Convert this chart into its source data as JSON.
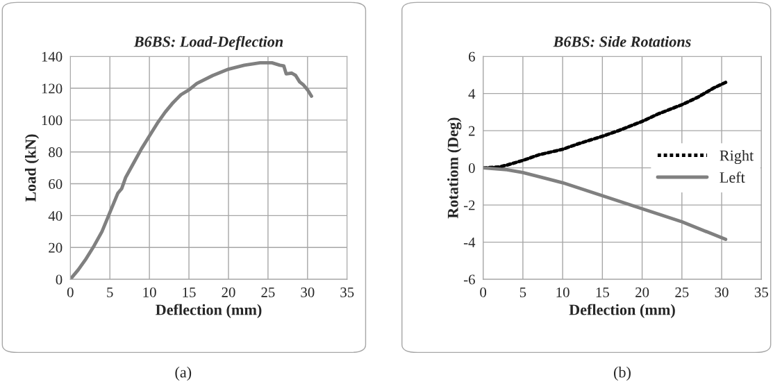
{
  "chart_data": [
    {
      "type": "line",
      "title": "B6BS: Load-Deflection",
      "xlabel": "Deflection (mm)",
      "ylabel": "Load (kN)",
      "xlim": [
        0,
        35
      ],
      "xticks": [
        0,
        5,
        10,
        15,
        20,
        25,
        30,
        35
      ],
      "ylim": [
        0,
        140
      ],
      "yticks": [
        0,
        20,
        40,
        60,
        80,
        100,
        120,
        140
      ],
      "grid": true,
      "legend": false,
      "annotations": [
        "(a)"
      ],
      "series": [
        {
          "color": "#808080",
          "line_style": "solid",
          "x": [
            0,
            1,
            2,
            3,
            4,
            5,
            6,
            6.5,
            7,
            8,
            9,
            10,
            11,
            12,
            13,
            14,
            15,
            16,
            18,
            20,
            22,
            24,
            25.5,
            26.5,
            27,
            27.3,
            28,
            28.5,
            29,
            29.5,
            30,
            30.5
          ],
          "values": [
            0,
            6,
            13,
            21,
            30,
            42,
            54,
            57,
            64,
            73,
            82,
            90,
            98,
            105,
            111,
            116,
            119,
            123,
            128,
            132,
            134.5,
            136,
            136,
            134.5,
            134,
            129,
            129.5,
            128,
            124,
            122,
            119,
            115
          ]
        }
      ]
    },
    {
      "type": "line",
      "title": "B6BS: Side Rotations",
      "xlabel": "Deflection (mm)",
      "ylabel": "Rotatiom (Deg)",
      "xlim": [
        0,
        35
      ],
      "xticks": [
        0,
        5,
        10,
        15,
        20,
        25,
        30,
        35
      ],
      "ylim": [
        -6,
        6
      ],
      "yticks": [
        -6,
        -4,
        -2,
        0,
        2,
        4,
        6
      ],
      "grid": true,
      "legend": "right",
      "annotations": [
        "(b)"
      ],
      "series": [
        {
          "name": "Right",
          "color": "#000000",
          "line_style": "dotted",
          "x": [
            0,
            2,
            3,
            5,
            7,
            10,
            12,
            15,
            17,
            20,
            22,
            25,
            27,
            29,
            30.5
          ],
          "values": [
            0,
            0.05,
            0.15,
            0.4,
            0.7,
            1.0,
            1.3,
            1.7,
            2.0,
            2.5,
            2.9,
            3.4,
            3.8,
            4.3,
            4.6
          ]
        },
        {
          "name": "Left",
          "color": "#808080",
          "line_style": "solid",
          "x": [
            0,
            3,
            5,
            10,
            15,
            20,
            25,
            30.5
          ],
          "values": [
            0,
            -0.1,
            -0.25,
            -0.8,
            -1.5,
            -2.2,
            -2.9,
            -3.85
          ]
        }
      ]
    }
  ]
}
